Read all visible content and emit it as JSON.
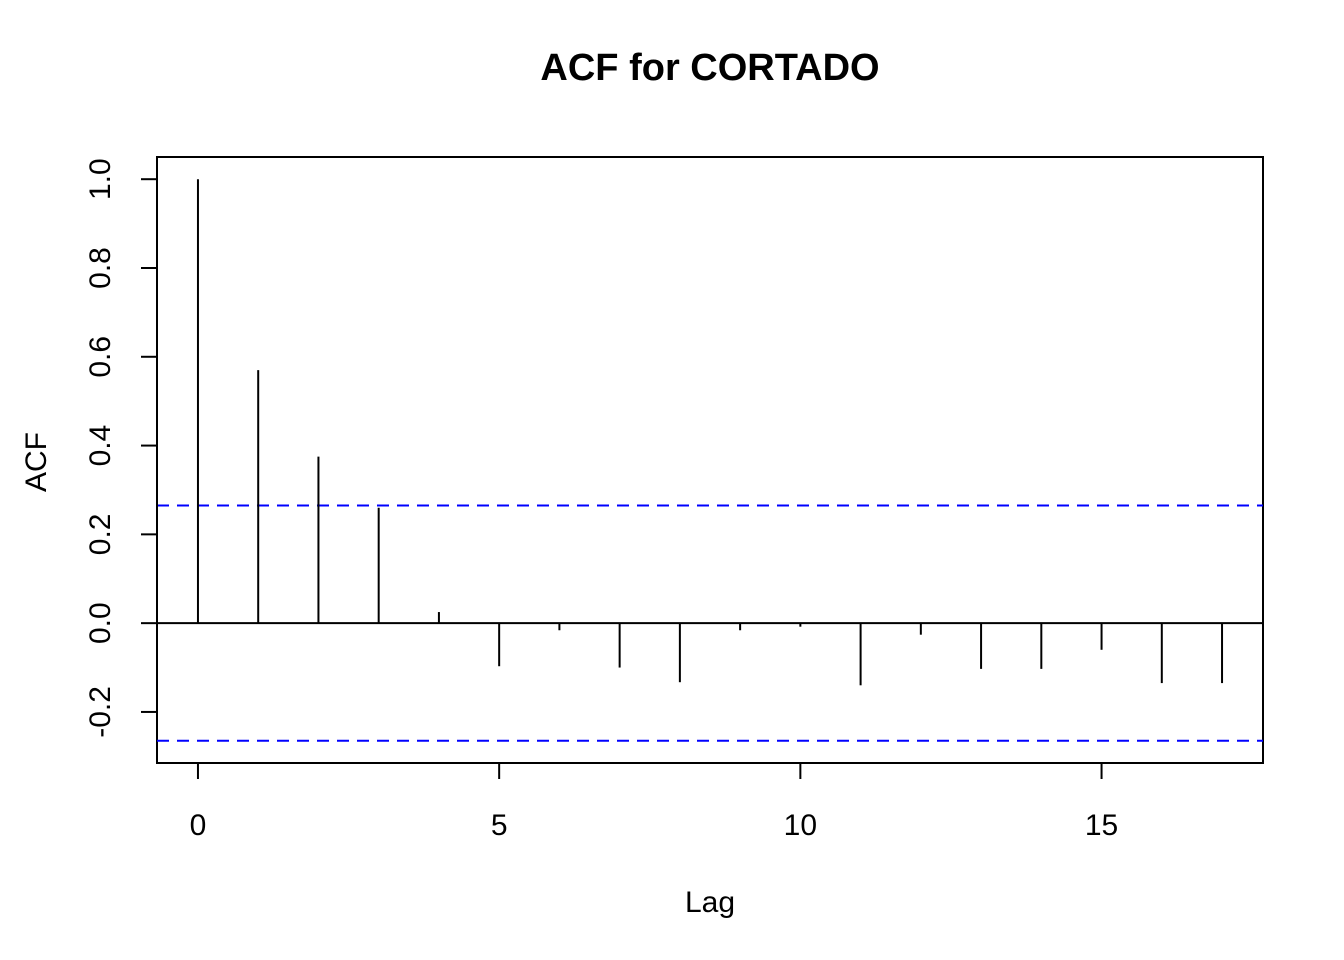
{
  "chart_data": {
    "type": "acf",
    "title": "ACF for CORTADO",
    "xlabel": "Lag",
    "ylabel": "ACF",
    "xlim": [
      -0.68,
      17.68
    ],
    "ylim": [
      -0.315,
      1.05
    ],
    "x_ticks": [
      0,
      5,
      10,
      15
    ],
    "y_ticks": [
      -0.2,
      0.0,
      0.2,
      0.4,
      0.6,
      0.8,
      1.0
    ],
    "x_tick_labels": [
      "0",
      "5",
      "10",
      "15"
    ],
    "y_tick_labels": [
      "-0.2",
      "0.0",
      "0.2",
      "0.4",
      "0.6",
      "0.8",
      "1.0"
    ],
    "lags": [
      0,
      1,
      2,
      3,
      4,
      5,
      6,
      7,
      8,
      9,
      10,
      11,
      12,
      13,
      14,
      15,
      16,
      17
    ],
    "values": [
      1.0,
      0.57,
      0.375,
      0.26,
      0.025,
      -0.097,
      -0.016,
      -0.1,
      -0.133,
      -0.016,
      -0.008,
      -0.14,
      -0.026,
      -0.103,
      -0.103,
      -0.06,
      -0.135,
      -0.135
    ],
    "confidence_bound": 0.265,
    "colors": {
      "bars": "#000000",
      "confidence": "#0000ff",
      "frame": "#000000"
    },
    "grid": false,
    "legend": "none"
  }
}
